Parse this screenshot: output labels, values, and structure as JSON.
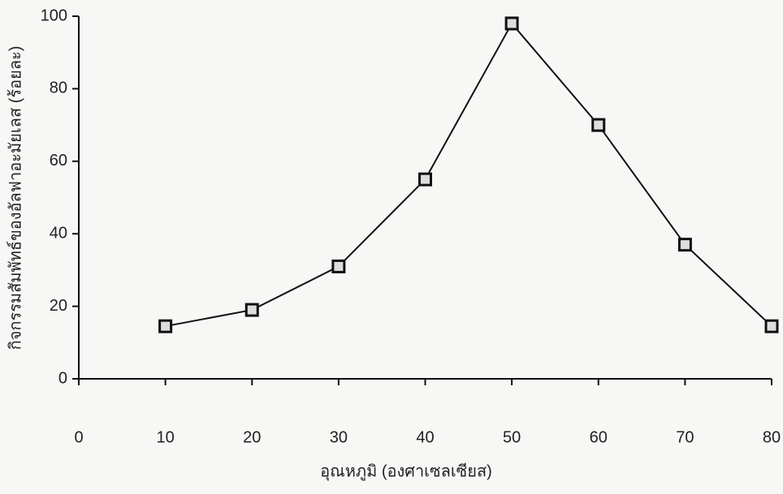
{
  "chart_data": {
    "type": "line",
    "xlabel": "อุณหภูมิ (องศาเซลเซียส)",
    "ylabel": "กิจกรรมสัมพัทธ์ของอัลฟาอะมัยเลส (ร้อยละ)",
    "x": [
      10,
      20,
      30,
      40,
      50,
      60,
      70,
      80
    ],
    "series": [
      {
        "color": "#111111",
        "values": [
          14.5,
          19,
          31,
          55,
          98,
          70,
          37,
          14.5
        ]
      }
    ],
    "xlim": [
      0,
      80
    ],
    "xticks": [
      0,
      10,
      20,
      30,
      40,
      50,
      60,
      70,
      80
    ],
    "ylim": [
      0,
      100
    ],
    "yticks": [
      0,
      20,
      40,
      60,
      80,
      100
    ]
  }
}
